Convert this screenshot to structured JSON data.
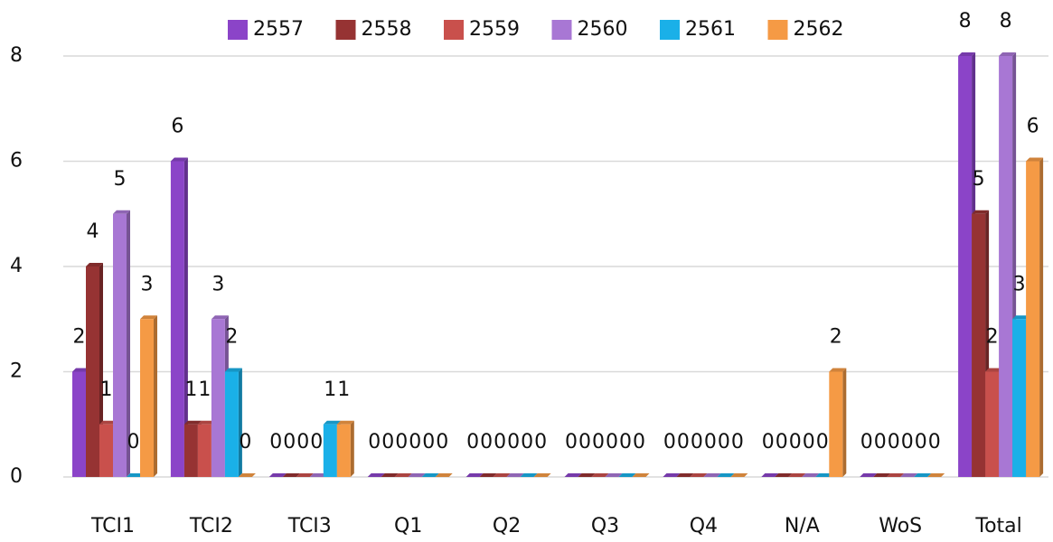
{
  "chart_data": {
    "type": "bar",
    "categories": [
      "TCI1",
      "TCI2",
      "TCI3",
      "Q1",
      "Q2",
      "Q3",
      "Q4",
      "N/A",
      "WoS",
      "Total"
    ],
    "series": [
      {
        "name": "2557",
        "color": "#8b44c8",
        "values": [
          2,
          6,
          0,
          0,
          0,
          0,
          0,
          0,
          0,
          8
        ]
      },
      {
        "name": "2558",
        "color": "#963333",
        "values": [
          4,
          1,
          0,
          0,
          0,
          0,
          0,
          0,
          0,
          5
        ]
      },
      {
        "name": "2559",
        "color": "#c9504c",
        "values": [
          1,
          1,
          0,
          0,
          0,
          0,
          0,
          0,
          0,
          2
        ]
      },
      {
        "name": "2560",
        "color": "#a877d4",
        "values": [
          5,
          3,
          0,
          0,
          0,
          0,
          0,
          0,
          0,
          8
        ]
      },
      {
        "name": "2561",
        "color": "#1ab0e8",
        "values": [
          0,
          2,
          1,
          0,
          0,
          0,
          0,
          0,
          0,
          3
        ]
      },
      {
        "name": "2562",
        "color": "#f59a45",
        "values": [
          3,
          0,
          1,
          0,
          0,
          0,
          0,
          2,
          0,
          6
        ]
      }
    ],
    "ylim": [
      0,
      8
    ],
    "yticks": [
      0,
      2,
      4,
      6,
      8
    ],
    "grid": true,
    "legend": "top"
  }
}
